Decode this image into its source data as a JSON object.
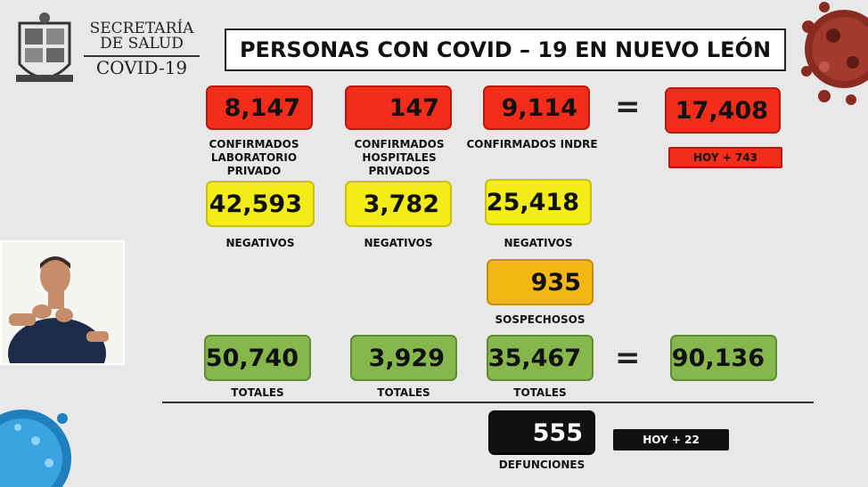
{
  "header": {
    "org_line1": "SECRETARÍA",
    "org_line2": "DE SALUD",
    "org_line3": "COVID-19",
    "title": "PERSONAS CON COVID – 19 EN NUEVO LEÓN"
  },
  "confirmed": {
    "private_lab": {
      "value": "8,147",
      "label": "CONFIRMADOS LABORATORIO PRIVADO"
    },
    "private_hosp": {
      "value": "147",
      "label": "CONFIRMADOS HOSPITALES PRIVADOS"
    },
    "indre": {
      "value": "9,114",
      "label": "CONFIRMADOS INDRE"
    },
    "total": {
      "value": "17,408"
    },
    "today": "HOY + 743"
  },
  "negatives": {
    "col1": {
      "value": "42,593",
      "label": "NEGATIVOS"
    },
    "col2": {
      "value": "3,782",
      "label": "NEGATIVOS"
    },
    "col3": {
      "value": "25,418",
      "label": "NEGATIVOS"
    }
  },
  "suspects": {
    "value": "935",
    "label": "SOSPECHOSOS"
  },
  "totals": {
    "col1": {
      "value": "50,740",
      "label": "TOTALES"
    },
    "col2": {
      "value": "3,929",
      "label": "TOTALES"
    },
    "col3": {
      "value": "35,467",
      "label": "TOTALES"
    },
    "grand": {
      "value": "90,136"
    }
  },
  "deaths": {
    "value": "555",
    "label": "DEFUNCIONES",
    "today": "HOY + 22"
  },
  "equals": "=",
  "colors": {
    "red": "#f42c1a",
    "yellow": "#f3ec18",
    "orange": "#f2b713",
    "green": "#86b74d",
    "black": "#111111"
  }
}
